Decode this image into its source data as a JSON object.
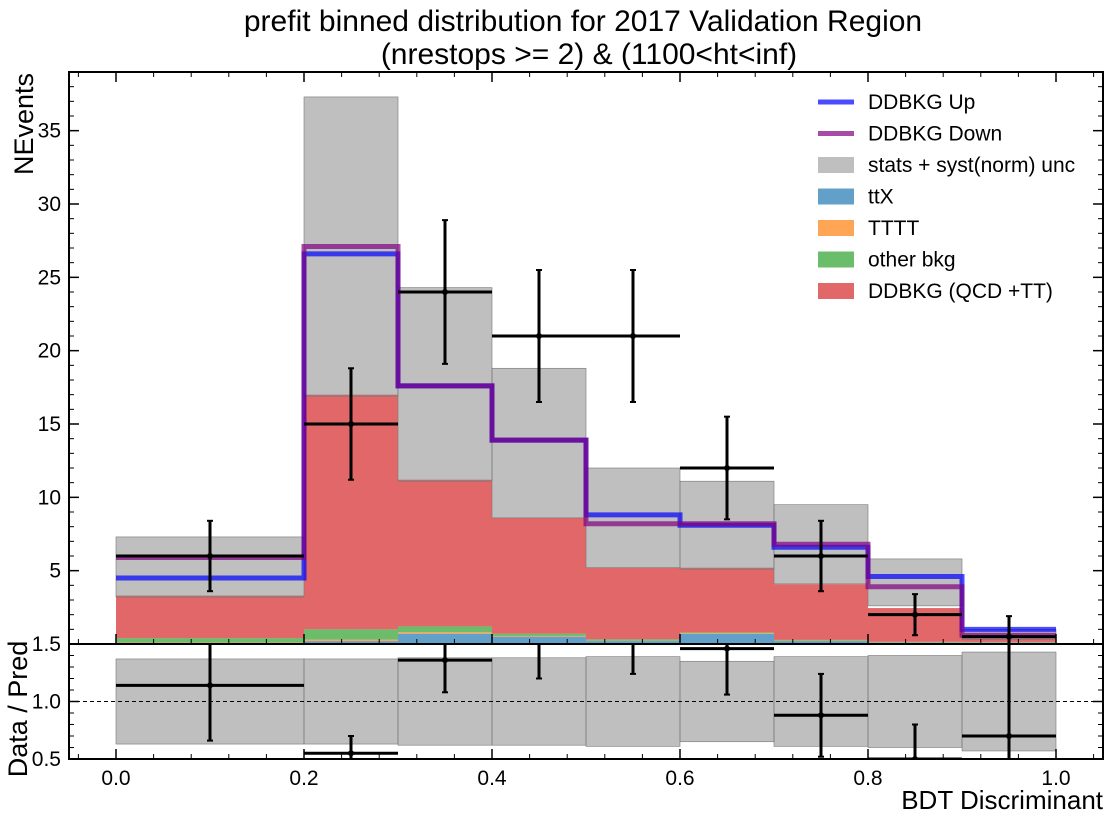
{
  "chart_data": {
    "type": "histogram",
    "title_line1": "prefit binned distribution for 2017 Validation Region",
    "title_line2": "(nrestops >= 2) & (1100<ht<inf)",
    "xlabel": "BDT Discriminant",
    "ylabel_top": "NEvents",
    "ylabel_bottom": "Data / Pred",
    "xlim": [
      -0.05,
      1.05
    ],
    "ylim_top": [
      0,
      39
    ],
    "ylim_bottom": [
      0.5,
      1.5
    ],
    "x_ticks": [
      "0.0",
      "0.2",
      "0.4",
      "0.6",
      "0.8",
      "1.0"
    ],
    "y_ticks_top": [
      "5",
      "10",
      "15",
      "20",
      "25",
      "30",
      "35"
    ],
    "y_ticks_bottom": [
      "0.5",
      "1.0",
      "1.5"
    ],
    "bin_edges": [
      0.0,
      0.2,
      0.3,
      0.4,
      0.5,
      0.6,
      0.7,
      0.8,
      0.9,
      1.0
    ],
    "stack": [
      {
        "name": "ttX",
        "color": "#1f77b4",
        "values": [
          0.05,
          0.2,
          0.7,
          0.5,
          0.2,
          0.7,
          0.2,
          0.1,
          0.1
        ]
      },
      {
        "name": "TTTT",
        "color": "#ff7f0e",
        "values": [
          0.05,
          0.1,
          0.1,
          0.05,
          0.02,
          0.05,
          0.03,
          0.02,
          0.02
        ]
      },
      {
        "name": "other bkg",
        "color": "#2ca02c",
        "values": [
          0.3,
          0.7,
          0.4,
          0.15,
          0.1,
          0.05,
          0.05,
          0.03,
          0.02
        ]
      },
      {
        "name": "DDBKG (QCD +TT)",
        "color": "#d62728",
        "values": [
          2.9,
          16.0,
          10.0,
          7.9,
          4.9,
          4.4,
          3.8,
          2.3,
          0.35
        ]
      }
    ],
    "unc_band": {
      "name": "stats + syst(norm) unc",
      "color": "#808080",
      "low": [
        3.2,
        16.9,
        11.1,
        8.6,
        5.2,
        5.1,
        4.1,
        2.6,
        0.3
      ],
      "high": [
        7.3,
        37.3,
        24.3,
        18.8,
        12.0,
        11.1,
        9.5,
        5.8,
        1.0
      ]
    },
    "lines": [
      {
        "name": "DDBKG Up",
        "color": "#0000ff",
        "values": [
          4.5,
          26.6,
          17.6,
          13.9,
          8.8,
          8.1,
          6.6,
          4.6,
          1.0
        ]
      },
      {
        "name": "DDBKG Down",
        "color": "#800080",
        "values": [
          5.9,
          27.1,
          17.6,
          13.9,
          8.2,
          8.2,
          6.8,
          3.9,
          0.6
        ]
      }
    ],
    "data": {
      "x": [
        0.1,
        0.25,
        0.35,
        0.45,
        0.55,
        0.65,
        0.75,
        0.85,
        0.95
      ],
      "xerr": [
        0.1,
        0.05,
        0.05,
        0.05,
        0.05,
        0.05,
        0.05,
        0.05,
        0.05
      ],
      "y": [
        6,
        15,
        24,
        21,
        21,
        12,
        6,
        2,
        0.5
      ],
      "yerr_low": [
        2.4,
        3.8,
        4.9,
        4.5,
        4.5,
        3.5,
        2.4,
        1.4,
        0.5
      ],
      "yerr_high": [
        2.4,
        3.8,
        4.9,
        4.5,
        4.5,
        3.5,
        2.4,
        1.4,
        1.4
      ]
    },
    "ratio": {
      "band_low": [
        0.63,
        0.63,
        0.62,
        0.62,
        0.61,
        0.65,
        0.61,
        0.6,
        0.57
      ],
      "band_high": [
        1.37,
        1.37,
        1.38,
        1.38,
        1.39,
        1.35,
        1.39,
        1.4,
        1.43
      ],
      "y": [
        1.14,
        0.55,
        1.36,
        1.52,
        1.56,
        1.46,
        0.88,
        0.5,
        0.7
      ],
      "yerr_low": [
        0.48,
        0.15,
        0.28,
        0.32,
        0.32,
        0.4,
        0.36,
        0.3,
        0.7
      ],
      "yerr_high": [
        0.48,
        0.15,
        0.28,
        0.32,
        0.32,
        0.4,
        0.36,
        0.3,
        0.8
      ]
    },
    "legend_position": "top-right"
  }
}
